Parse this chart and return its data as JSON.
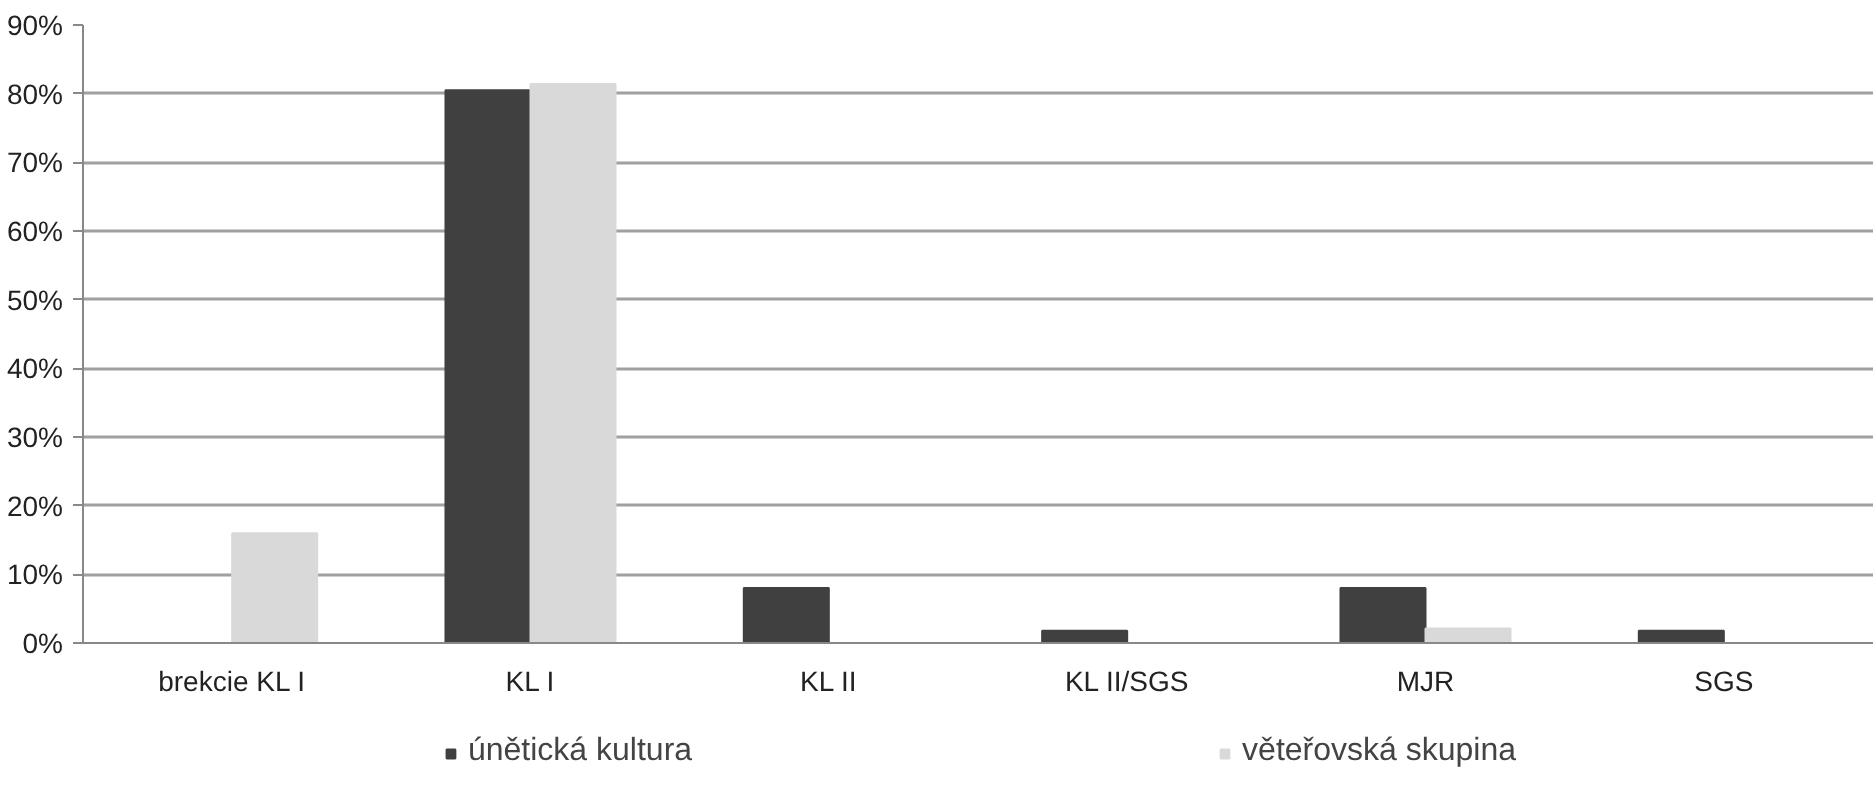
{
  "chart_data": {
    "type": "bar",
    "categories": [
      "brekcie KL I",
      "KL I",
      "KL II",
      "KL II/SGS",
      "MJR",
      "SGS"
    ],
    "series": [
      {
        "name": "únětická kultura",
        "color": "#404040",
        "values": [
          0,
          80.5,
          8.0,
          1.8,
          8.0,
          1.8
        ]
      },
      {
        "name": "věteřovská skupina",
        "color": "#d9d9d9",
        "values": [
          16.0,
          81.4,
          0,
          0,
          2.1,
          0
        ]
      }
    ],
    "ylim": [
      0,
      90
    ],
    "yticks": [
      {
        "value": 0,
        "label": "0%"
      },
      {
        "value": 10,
        "label": "10%"
      },
      {
        "value": 20,
        "label": "20%"
      },
      {
        "value": 30,
        "label": "30%"
      },
      {
        "value": 40,
        "label": "40%"
      },
      {
        "value": 50,
        "label": "50%"
      },
      {
        "value": 60,
        "label": "60%"
      },
      {
        "value": 70,
        "label": "70%"
      },
      {
        "value": 80,
        "label": "80%"
      },
      {
        "value": 90,
        "label": "90%"
      }
    ],
    "grid": "y",
    "legend": "bottom"
  }
}
